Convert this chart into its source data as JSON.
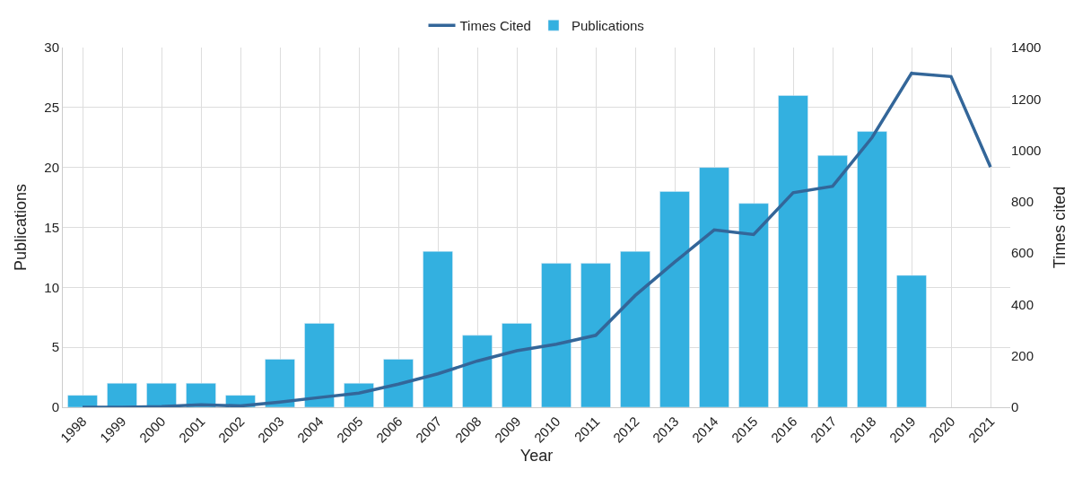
{
  "chart_data": {
    "type": "bar",
    "xlabel": "Year",
    "ylabel": "Publications",
    "y2label": "Times cited",
    "categories": [
      "1998",
      "1999",
      "2000",
      "2001",
      "2002",
      "2003",
      "2004",
      "2005",
      "2006",
      "2007",
      "2008",
      "2009",
      "2010",
      "2011",
      "2012",
      "2013",
      "2014",
      "2015",
      "2016",
      "2017",
      "2018",
      "2019",
      "2020",
      "2021"
    ],
    "series": [
      {
        "name": "Times Cited",
        "type": "line",
        "axis": "y2",
        "color": "#336699",
        "values": [
          0,
          0,
          3,
          10,
          5,
          20,
          38,
          55,
          90,
          130,
          180,
          220,
          245,
          280,
          435,
          565,
          690,
          672,
          835,
          860,
          1050,
          1300,
          1287,
          935
        ]
      },
      {
        "name": "Publications",
        "color": "#33b0e0",
        "values": [
          1,
          2,
          2,
          2,
          1,
          4,
          7,
          2,
          4,
          13,
          6,
          7,
          12,
          12,
          13,
          18,
          20,
          17,
          26,
          21,
          23,
          11,
          null,
          null
        ]
      }
    ],
    "ylim": [
      0,
      30
    ],
    "yticks": [
      0,
      5,
      10,
      15,
      20,
      25,
      30
    ],
    "y2lim": [
      0,
      1400
    ],
    "y2ticks": [
      0,
      200,
      400,
      600,
      800,
      1000,
      1200,
      1400
    ],
    "grid": true,
    "legend": "top",
    "marker": "none",
    "line_style": "solid"
  }
}
